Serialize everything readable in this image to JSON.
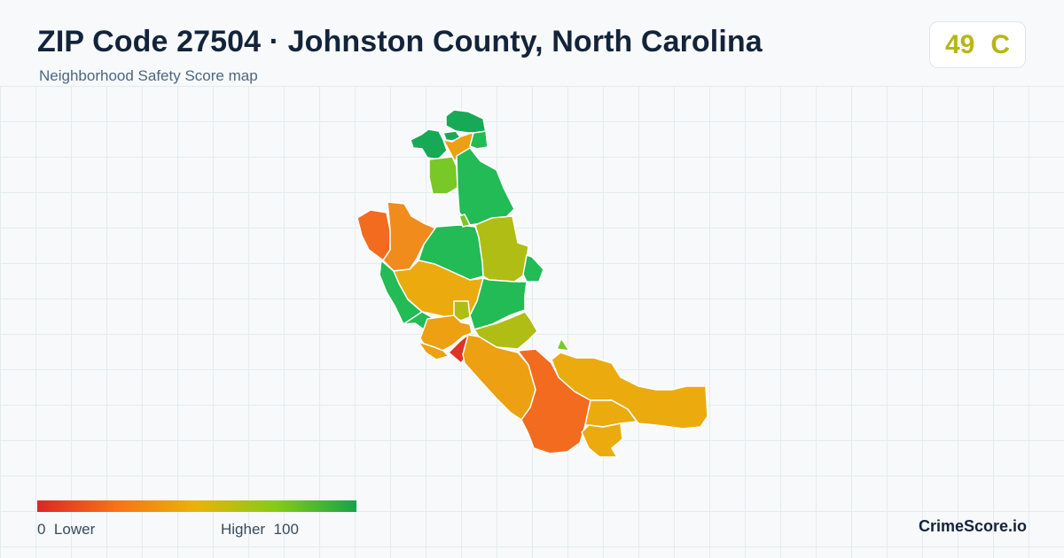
{
  "header": {
    "title": "ZIP Code 27504 · Johnston County, North Carolina",
    "subtitle": "Neighborhood Safety Score map"
  },
  "score": {
    "value": "49",
    "grade": "C",
    "color": "#b8b515"
  },
  "legend": {
    "low_value": "0",
    "low_label": "Lower",
    "high_label": "Higher",
    "high_value": "100",
    "gradient_colors": [
      "#dc2626",
      "#f97316",
      "#eab308",
      "#84cc16",
      "#16a34a"
    ]
  },
  "brand": "CrimeScore.io",
  "palette": {
    "red": "#dd3424",
    "red_orange": "#f26b1f",
    "orange": "#f08c1c",
    "orange_yellow": "#eca012",
    "amber": "#ebab0f",
    "olive": "#b0bd14",
    "lime": "#78c828",
    "green": "#22bb55",
    "dark_green": "#18a957"
  }
}
